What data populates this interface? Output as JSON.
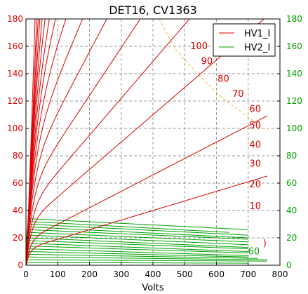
{
  "chart_data": {
    "type": "line",
    "title": "DET16, CV1363",
    "xlabel": "Volts",
    "ylabel": "",
    "xlim": [
      0,
      800
    ],
    "ylim": [
      0,
      180
    ],
    "x_ticks": [
      0,
      100,
      200,
      300,
      400,
      500,
      600,
      700,
      800
    ],
    "y_ticks": [
      0,
      20,
      40,
      60,
      80,
      100,
      120,
      140,
      160,
      180
    ],
    "grid": true,
    "legend_position": "top-right",
    "legend": [
      {
        "label": "HV1_I",
        "color": "#dd0000"
      },
      {
        "label": "HV2_I",
        "color": "#00a000"
      }
    ],
    "hv1_color": "#dd0000",
    "hv2_color": "#00a000",
    "envelope_color": "#ffbb33",
    "hv1_curves": [
      {
        "p": 6.0,
        "m": 155,
        "k": 0.028
      },
      {
        "p": 4.2,
        "m": 152,
        "k": 0.028
      },
      {
        "p": 3.0,
        "m": 148,
        "k": 0.03
      },
      {
        "p": 2.2,
        "m": 143,
        "k": 0.032
      },
      {
        "p": 1.6,
        "m": 138,
        "k": 0.034
      },
      {
        "p": 1.25,
        "m": 130,
        "k": 0.035
      },
      {
        "p": 1.0,
        "m": 120,
        "k": 0.036
      },
      {
        "p": 0.82,
        "m": 109,
        "k": 0.038
      },
      {
        "p": 0.67,
        "m": 97,
        "k": 0.04
      },
      {
        "p": 0.55,
        "m": 82,
        "k": 0.045
      },
      {
        "p": 0.44,
        "m": 68,
        "k": 0.05
      },
      {
        "p": 0.35,
        "m": 54,
        "k": 0.055
      },
      {
        "p": 0.27,
        "m": 41,
        "k": 0.06
      },
      {
        "p": 0.2,
        "m": 30,
        "k": 0.07
      },
      {
        "p": 0.12,
        "m": 18,
        "k": 0.08
      },
      {
        "p": 0.07,
        "m": 12,
        "k": 0.09
      }
    ],
    "hv1_labels": [
      {
        "text": "100",
        "x": 545,
        "y": 158
      },
      {
        "text": "90",
        "x": 570,
        "y": 147
      },
      {
        "text": "80",
        "x": 622,
        "y": 134
      },
      {
        "text": "70",
        "x": 668,
        "y": 123
      },
      {
        "text": "60",
        "x": 722,
        "y": 112
      },
      {
        "text": "50",
        "x": 722,
        "y": 100
      },
      {
        "text": "40",
        "x": 722,
        "y": 86
      },
      {
        "text": "30",
        "x": 722,
        "y": 72
      },
      {
        "text": "20",
        "x": 722,
        "y": 57
      },
      {
        "text": "10",
        "x": 722,
        "y": 41
      },
      {
        "text": ")",
        "x": 752,
        "y": 14
      }
    ],
    "hv2_lines": [
      {
        "y0": 34,
        "y1": 26,
        "xmax": 700
      },
      {
        "y0": 32,
        "y1": 24,
        "xmax": 640
      },
      {
        "y0": 30,
        "y1": 22,
        "xmax": 700
      },
      {
        "y0": 28,
        "y1": 20,
        "xmax": 700
      },
      {
        "y0": 26,
        "y1": 19,
        "xmax": 700
      },
      {
        "y0": 24,
        "y1": 17,
        "xmax": 700
      },
      {
        "y0": 22,
        "y1": 15,
        "xmax": 700
      },
      {
        "y0": 20,
        "y1": 13,
        "xmax": 700
      },
      {
        "y0": 18,
        "y1": 12,
        "xmax": 700
      },
      {
        "y0": 16,
        "y1": 10,
        "xmax": 700
      },
      {
        "y0": 14,
        "y1": 9,
        "xmax": 700
      },
      {
        "y0": 12,
        "y1": 7,
        "xmax": 700
      },
      {
        "y0": 10,
        "y1": 6,
        "xmax": 700
      },
      {
        "y0": 8,
        "y1": 5,
        "xmax": 730
      },
      {
        "y0": 6,
        "y1": 4,
        "xmax": 760
      },
      {
        "y0": 4,
        "y1": 3,
        "xmax": 760
      },
      {
        "y0": 2,
        "y1": 1.5,
        "xmax": 700
      }
    ],
    "hv2_labels": [
      {
        "text": "60",
        "x": 718,
        "y": 8
      }
    ],
    "envelope": [
      [
        420,
        180
      ],
      [
        470,
        158
      ],
      [
        540,
        140
      ],
      [
        620,
        122
      ],
      [
        690,
        110
      ],
      [
        760,
        98
      ]
    ]
  }
}
